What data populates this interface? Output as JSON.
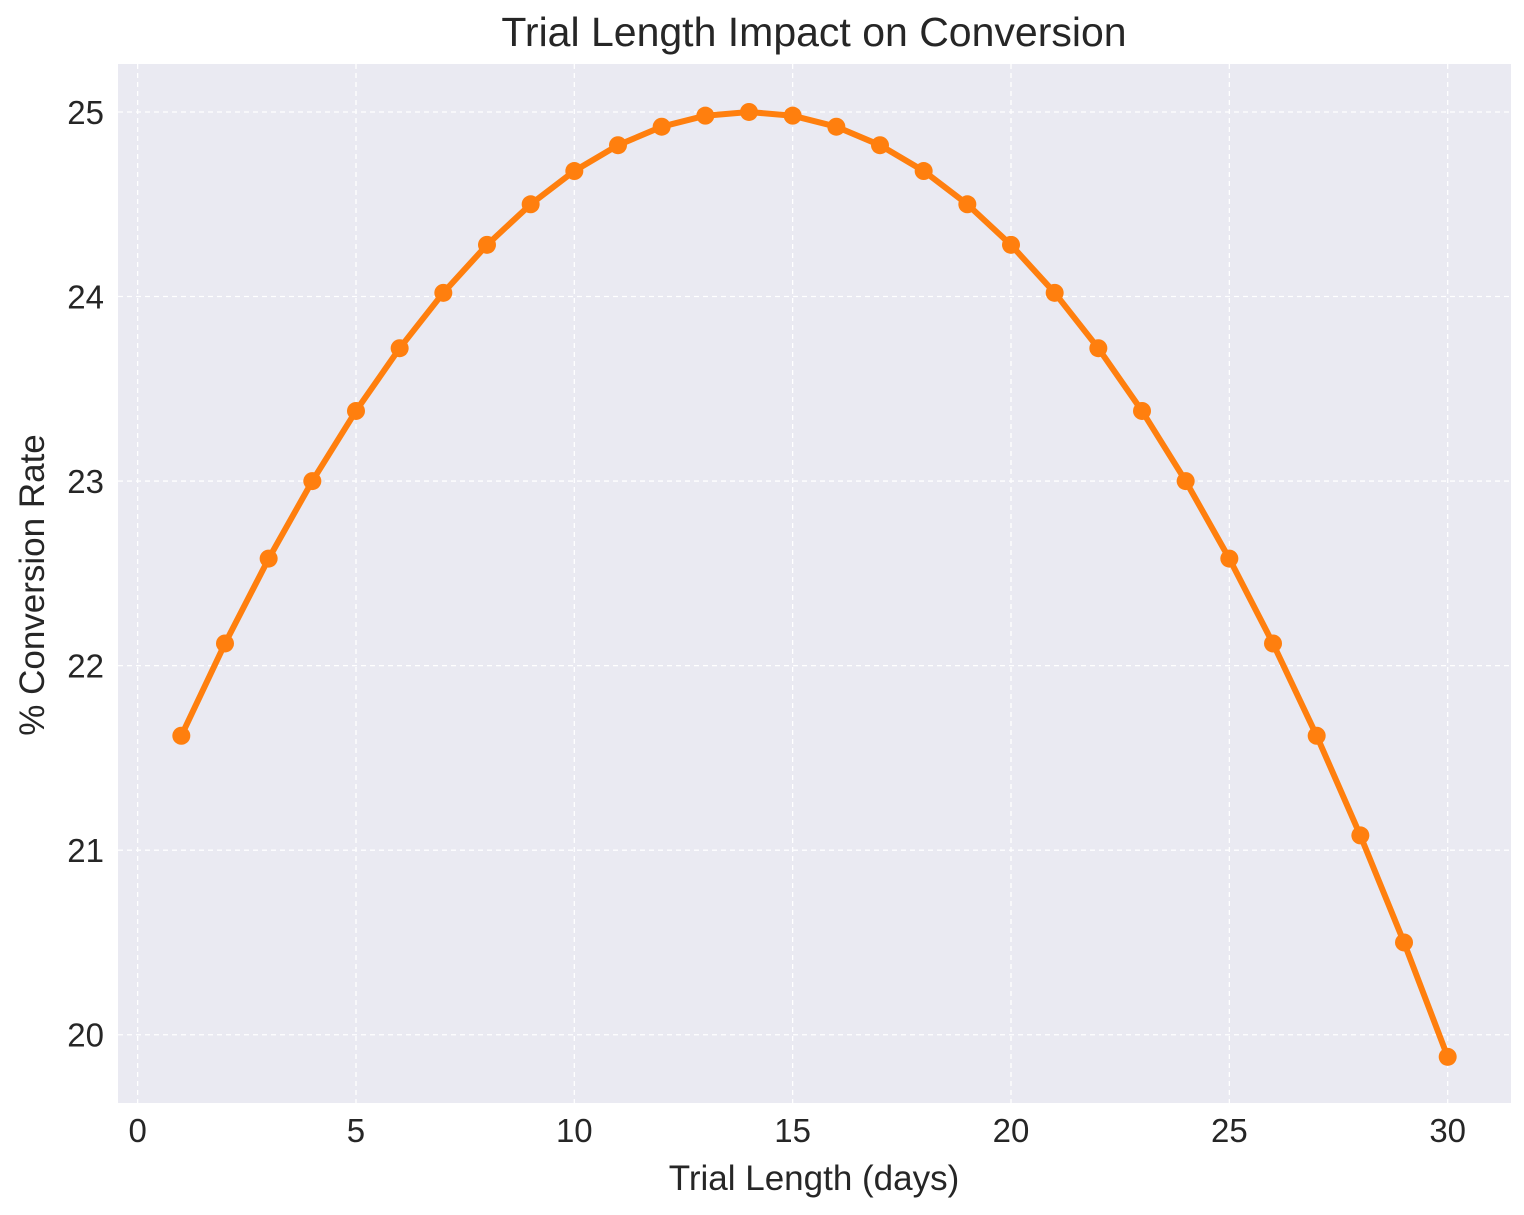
{
  "chart_data": {
    "type": "line",
    "title": "Trial Length Impact on Conversion",
    "xlabel": "Trial Length (days)",
    "ylabel": "% Conversion Rate",
    "xlim": [
      -0.45,
      31.45
    ],
    "ylim": [
      19.63,
      25.26
    ],
    "x_ticks": [
      0,
      5,
      10,
      15,
      20,
      25,
      30
    ],
    "x_tick_labels": [
      "0",
      "5",
      "10",
      "15",
      "20",
      "25",
      "30"
    ],
    "y_ticks": [
      20,
      21,
      22,
      23,
      24,
      25
    ],
    "y_tick_labels": [
      "20",
      "21",
      "22",
      "23",
      "24",
      "25"
    ],
    "grid": true,
    "legend": "none",
    "colors": {
      "line": "#ff7f0e",
      "plot_background": "#eaeaf2",
      "grid": "#ffffff",
      "text": "#262626"
    },
    "series": [
      {
        "x": [
          1,
          2,
          3,
          4,
          5,
          6,
          7,
          8,
          9,
          10,
          11,
          12,
          13,
          14,
          15,
          16,
          17,
          18,
          19,
          20,
          21,
          22,
          23,
          24,
          25,
          26,
          27,
          28,
          29,
          30
        ],
        "values": [
          21.62,
          22.12,
          22.58,
          23.0,
          23.38,
          23.72,
          24.02,
          24.28,
          24.5,
          24.68,
          24.82,
          24.92,
          24.98,
          25.0,
          24.98,
          24.92,
          24.82,
          24.68,
          24.5,
          24.28,
          24.02,
          23.72,
          23.38,
          23.0,
          22.58,
          22.12,
          21.62,
          21.08,
          20.5,
          19.88
        ]
      }
    ]
  }
}
